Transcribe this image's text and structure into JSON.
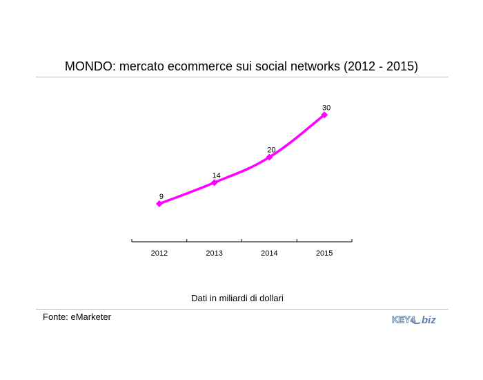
{
  "header": {
    "title": "MONDO: mercato ecommerce sui social networks (2012 - 2015)"
  },
  "footer": {
    "note": "Dati in miliardi di dollari",
    "source": "Fonte: eMarketer",
    "logo_text_left": "KEY4",
    "logo_text_right": "biz"
  },
  "colors": {
    "series": "#ff00ff",
    "logo": "#5b7fa8"
  },
  "chart_data": {
    "type": "line",
    "title": "MONDO: mercato ecommerce sui social networks (2012 - 2015)",
    "categories": [
      "2012",
      "2013",
      "2014",
      "2015"
    ],
    "series": [
      {
        "values": [
          9,
          14,
          20,
          30
        ]
      }
    ],
    "data_labels": [
      "9",
      "14",
      "20",
      "30"
    ],
    "ylim": [
      0,
      40
    ],
    "grid": false,
    "legend": "none",
    "smooth": true,
    "marker": "diamond"
  }
}
